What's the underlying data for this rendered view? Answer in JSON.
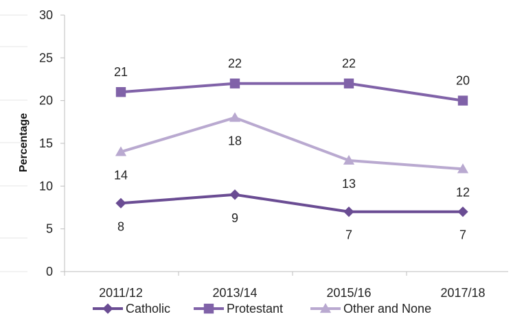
{
  "chart_data": {
    "type": "line",
    "title": "",
    "xlabel": "",
    "ylabel": "Percentage",
    "categories": [
      "2011/12",
      "2013/14",
      "2015/16",
      "2017/18"
    ],
    "ylim": [
      0,
      30
    ],
    "yticks": [
      0,
      5,
      10,
      15,
      20,
      25,
      30
    ],
    "grid": false,
    "legend_position": "bottom",
    "series": [
      {
        "name": "Catholic",
        "values": [
          8,
          9,
          7,
          7
        ],
        "labels": [
          "8",
          "9",
          "7",
          "7"
        ],
        "color": "#6a4c93",
        "marker": "diamond",
        "label_position": "below"
      },
      {
        "name": "Protestant",
        "values": [
          21,
          22,
          22,
          20
        ],
        "labels": [
          "21",
          "22",
          "22",
          "20"
        ],
        "color": "#8062a8",
        "marker": "square",
        "label_position": "above"
      },
      {
        "name": "Other and None",
        "values": [
          14,
          18,
          13,
          12
        ],
        "labels": [
          "14",
          "18",
          "13",
          "12"
        ],
        "color": "#b9a9d0",
        "marker": "triangle",
        "label_position": "below"
      }
    ]
  }
}
